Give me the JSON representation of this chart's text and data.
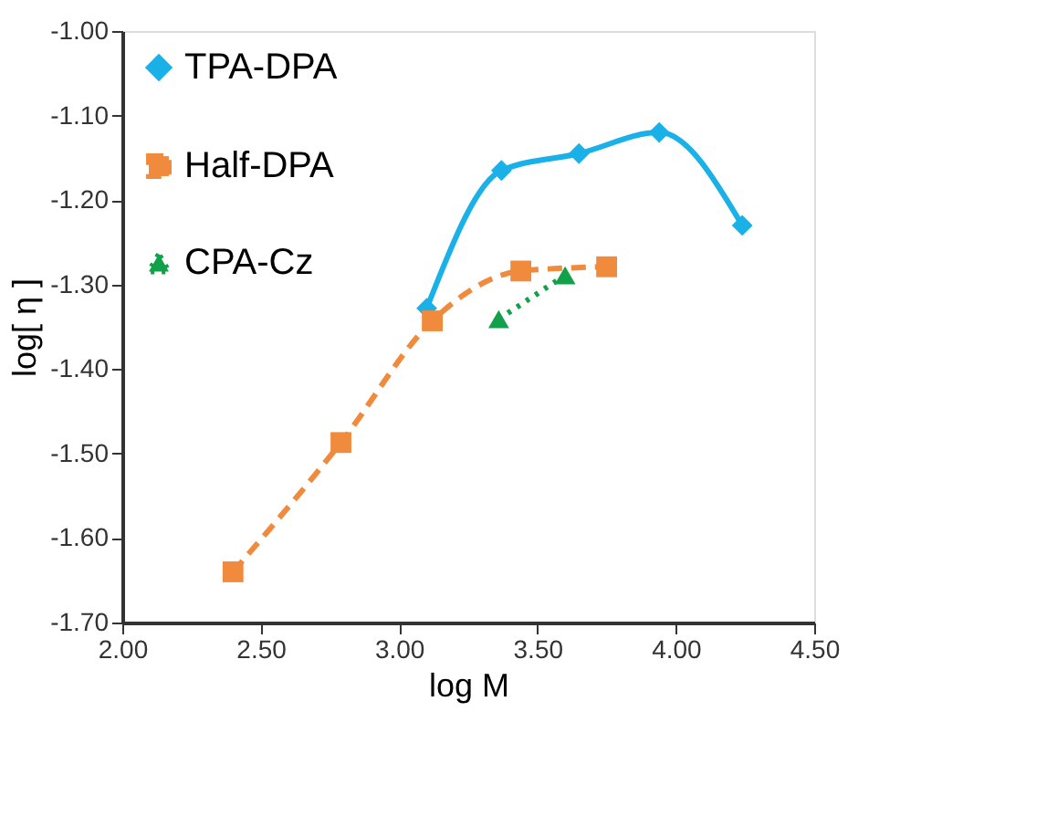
{
  "chart_data": {
    "type": "line",
    "xlabel": "log M",
    "ylabel": "log[ η ]",
    "xlim": [
      2.0,
      4.5
    ],
    "xticks": [
      {
        "value": 2.0,
        "label": "2.00"
      },
      {
        "value": 2.5,
        "label": "2.50"
      },
      {
        "value": 3.0,
        "label": "3.00"
      },
      {
        "value": 3.5,
        "label": "3.50"
      },
      {
        "value": 4.0,
        "label": "4.00"
      },
      {
        "value": 4.5,
        "label": "4.50"
      }
    ],
    "ylim": [
      -1.7,
      -1.0
    ],
    "yticks": [
      {
        "value": -1.7,
        "label": "-1.70"
      },
      {
        "value": -1.6,
        "label": "-1.60"
      },
      {
        "value": -1.5,
        "label": "-1.50"
      },
      {
        "value": -1.4,
        "label": "-1.40"
      },
      {
        "value": -1.3,
        "label": "-1.30"
      },
      {
        "value": -1.2,
        "label": "-1.20"
      },
      {
        "value": -1.1,
        "label": "-1.10"
      },
      {
        "value": -1.0,
        "label": "-1.00"
      }
    ],
    "grid": false,
    "legend": "top left",
    "series": [
      {
        "name": "TPA-DPA",
        "color": "#1ab0e8",
        "marker": "diamond",
        "line_style": "solid",
        "x": [
          3.1,
          3.37,
          3.65,
          3.94,
          4.24
        ],
        "values": [
          -1.328,
          -1.165,
          -1.145,
          -1.12,
          -1.23
        ]
      },
      {
        "name": "Half-DPA",
        "color": "#f08a3c",
        "marker": "square",
        "line_style": "dashed",
        "x": [
          2.4,
          2.79,
          3.12,
          3.44,
          3.75
        ],
        "values": [
          -1.64,
          -1.487,
          -1.343,
          -1.284,
          -1.279
        ]
      },
      {
        "name": "CPA-Cz",
        "color": "#12a04a",
        "marker": "triangle",
        "line_style": "dotted",
        "x": [
          3.36,
          3.6
        ],
        "values": [
          -1.341,
          -1.289
        ]
      }
    ]
  }
}
